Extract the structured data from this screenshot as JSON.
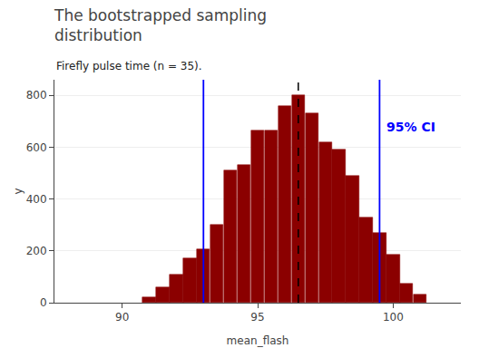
{
  "chart_data": {
    "type": "bar",
    "title": "The bootstrapped sampling\ndistribution",
    "subtitle": "Firefly pulse time (n = 35).",
    "xlabel": "mean_flash",
    "ylabel": "y",
    "x": [
      91.0,
      91.5,
      92.0,
      92.5,
      93.0,
      93.5,
      94.0,
      94.5,
      95.0,
      95.5,
      96.0,
      96.5,
      97.0,
      97.5,
      98.0,
      98.5,
      99.0,
      99.5,
      100.0,
      100.5,
      101.0
    ],
    "values": [
      20,
      60,
      110,
      170,
      205,
      300,
      510,
      530,
      665,
      665,
      760,
      800,
      730,
      620,
      590,
      490,
      330,
      270,
      185,
      75,
      30
    ],
    "color": "#8B0000",
    "xlim": [
      87.5,
      102.5
    ],
    "ylim": [
      0,
      860
    ],
    "xticks": [
      90,
      95,
      100
    ],
    "yticks": [
      0,
      200,
      400,
      600,
      800
    ],
    "grid": true,
    "reference_lines": [
      {
        "x": 96.5,
        "color": "black",
        "line_style": "dashed"
      },
      {
        "x": 93.0,
        "color": "#0000FF",
        "line_style": "solid"
      },
      {
        "x": 99.5,
        "color": "#0000FF",
        "line_style": "solid"
      }
    ],
    "annotations": [
      {
        "text": "95% CI",
        "x": 99.5,
        "color": "#0000FF"
      }
    ]
  }
}
